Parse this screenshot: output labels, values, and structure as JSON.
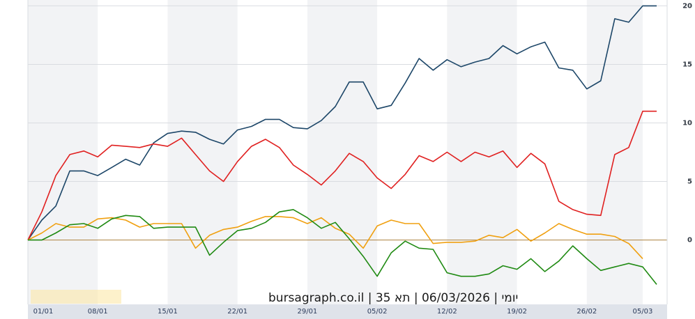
{
  "watermark_text": "יומי | 06/03/2026 | תא 35 | bursagraph.co.il",
  "colors": {
    "background": "#ffffff",
    "band": "#f2f3f5",
    "grid": "#d9dce1",
    "zero_line": "#b58f54",
    "axis_strip": "#dfe3ea"
  },
  "chart_data": {
    "type": "line",
    "title": "",
    "xlabel": "",
    "ylabel": "",
    "ylim": [
      -5.5,
      20.5
    ],
    "y_ticks": [
      0,
      5,
      10,
      15,
      20
    ],
    "grid": true,
    "legend": "none",
    "x_tick_labels": [
      "01/01",
      "08/01",
      "15/01",
      "22/01",
      "29/01",
      "05/02",
      "12/02",
      "19/02",
      "26/02",
      "05/03"
    ],
    "x_tick_index": [
      0,
      5,
      10,
      15,
      20,
      25,
      30,
      35,
      40,
      44
    ],
    "series": [
      {
        "color": "#1c4668",
        "values": [
          0,
          1.7,
          2.9,
          5.9,
          5.9,
          5.5,
          6.2,
          6.9,
          6.4,
          8.3,
          9.1,
          9.3,
          9.2,
          8.6,
          8.2,
          9.4,
          9.7,
          10.3,
          10.3,
          9.6,
          9.5,
          10.2,
          11.4,
          13.5,
          13.5,
          11.2,
          11.5,
          13.4,
          15.5,
          14.5,
          15.4,
          14.8,
          15.2,
          15.5,
          16.6,
          15.9,
          16.5,
          16.9,
          14.7,
          14.5,
          12.9,
          13.6,
          18.9,
          18.6,
          20.0,
          20.0
        ]
      },
      {
        "color": "#e02020",
        "values": [
          0,
          2.4,
          5.5,
          7.3,
          7.6,
          7.1,
          8.1,
          8.0,
          7.9,
          8.2,
          8.0,
          8.7,
          7.3,
          5.9,
          5.0,
          6.7,
          8.0,
          8.6,
          7.9,
          6.4,
          5.6,
          4.7,
          5.9,
          7.4,
          6.7,
          5.3,
          4.4,
          5.6,
          7.2,
          6.7,
          7.5,
          6.7,
          7.5,
          7.1,
          7.6,
          6.2,
          7.4,
          6.5,
          3.3,
          2.6,
          2.2,
          2.1,
          7.3,
          7.9,
          11.0,
          11.0
        ]
      },
      {
        "color": "#f0a010",
        "values": [
          0,
          0.6,
          1.4,
          1.1,
          1.1,
          1.8,
          1.9,
          1.7,
          1.1,
          1.4,
          1.4,
          1.4,
          -0.7,
          0.4,
          0.9,
          1.1,
          1.6,
          2.0,
          2.0,
          1.9,
          1.4,
          1.9,
          1.0,
          0.5,
          -0.7,
          1.2,
          1.7,
          1.4,
          1.4,
          -0.3,
          -0.2,
          -0.2,
          -0.1,
          0.4,
          0.2,
          0.9,
          -0.1,
          0.6,
          1.4,
          0.9,
          0.5,
          0.5,
          0.3,
          -0.3,
          -1.6
        ]
      },
      {
        "color": "#1f8a12",
        "values": [
          0,
          0,
          0.6,
          1.3,
          1.4,
          1.0,
          1.8,
          2.1,
          2.0,
          1.0,
          1.1,
          1.1,
          1.1,
          -1.3,
          -0.2,
          0.8,
          1.0,
          1.5,
          2.4,
          2.6,
          1.9,
          1.0,
          1.5,
          0.1,
          -1.4,
          -3.1,
          -1.1,
          -0.1,
          -0.7,
          -0.8,
          -2.8,
          -3.1,
          -3.1,
          -2.9,
          -2.2,
          -2.5,
          -1.6,
          -2.7,
          -1.8,
          -0.5,
          -1.6,
          -2.6,
          -2.3,
          -2.0,
          -2.3,
          -3.8
        ]
      }
    ]
  }
}
